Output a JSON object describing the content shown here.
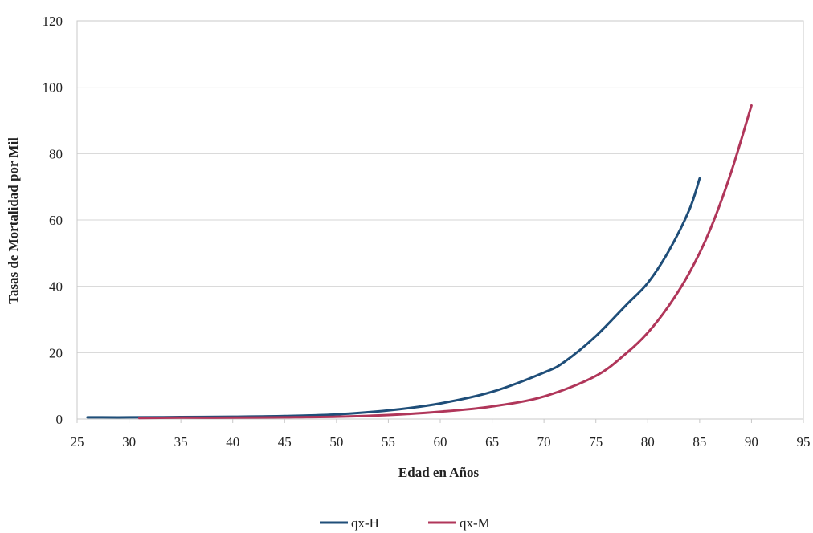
{
  "chart_data": {
    "type": "line",
    "title": "",
    "xlabel": "Edad en Años",
    "ylabel": "Tasas de Mortalidad por Mil",
    "xlim": [
      25,
      95
    ],
    "ylim": [
      0,
      120
    ],
    "xticks": [
      25,
      30,
      35,
      40,
      45,
      50,
      55,
      60,
      65,
      70,
      75,
      80,
      85,
      90,
      95
    ],
    "yticks": [
      0,
      20,
      40,
      60,
      80,
      100,
      120
    ],
    "grid": true,
    "legend_position": "bottom",
    "series": [
      {
        "name": "qx-H",
        "color": "#1f4e79",
        "x": [
          26,
          30,
          35,
          40,
          45,
          50,
          55,
          60,
          65,
          70,
          72,
          75,
          78,
          80,
          82,
          84,
          85
        ],
        "y": [
          0.5,
          0.5,
          0.6,
          0.7,
          0.9,
          1.4,
          2.6,
          4.7,
          8.2,
          14.0,
          17.3,
          25.0,
          34.6,
          41.0,
          50.5,
          63.0,
          72.5
        ]
      },
      {
        "name": "qx-M",
        "color": "#b0365a",
        "x": [
          31,
          35,
          40,
          45,
          50,
          55,
          60,
          65,
          70,
          75,
          78,
          80,
          82,
          84,
          86,
          88,
          90
        ],
        "y": [
          0.3,
          0.4,
          0.4,
          0.5,
          0.7,
          1.2,
          2.2,
          3.8,
          6.8,
          13.0,
          20.0,
          26.0,
          34.0,
          44.0,
          57.0,
          74.0,
          94.5
        ]
      }
    ]
  }
}
